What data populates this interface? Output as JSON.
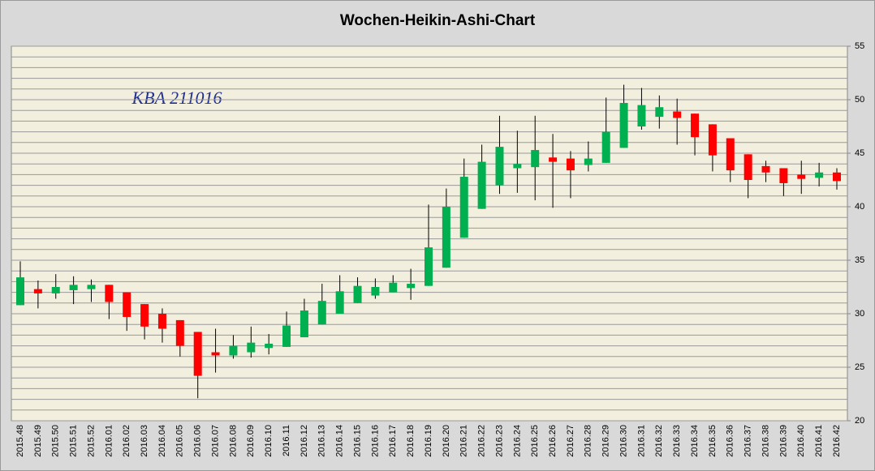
{
  "chart_data": {
    "type": "candlestick",
    "title": "Wochen-Heikin-Ashi-Chart",
    "annotation": "KBA 211016",
    "categories": [
      "2015.48",
      "2015.49",
      "2015.50",
      "2015.51",
      "2015.52",
      "2016.01",
      "2016.02",
      "2016.03",
      "2016.04",
      "2016.05",
      "2016.06",
      "2016.07",
      "2016.08",
      "2016.09",
      "2016.10",
      "2016.11",
      "2016.12",
      "2016.13",
      "2016.14",
      "2016.15",
      "2016.16",
      "2016.17",
      "2016.18",
      "2016.19",
      "2016.20",
      "2016.21",
      "2016.22",
      "2016.23",
      "2016.24",
      "2016.25",
      "2016.26",
      "2016.27",
      "2016.28",
      "2016.29",
      "2016.30",
      "2016.31",
      "2016.32",
      "2016.33",
      "2016.34",
      "2016.35",
      "2016.36",
      "2016.37",
      "2016.38",
      "2016.39",
      "2016.40",
      "2016.41",
      "2016.42"
    ],
    "open": [
      30.8,
      32.3,
      31.9,
      32.2,
      32.3,
      32.7,
      32.0,
      30.9,
      30.0,
      29.4,
      28.3,
      26.4,
      26.1,
      26.4,
      26.8,
      26.9,
      27.8,
      29.0,
      30.0,
      31.0,
      31.7,
      32.0,
      32.4,
      32.6,
      34.3,
      37.1,
      39.8,
      42.0,
      43.6,
      43.7,
      44.6,
      44.5,
      43.9,
      44.1,
      45.5,
      47.5,
      48.4,
      48.9,
      48.7,
      47.7,
      46.4,
      44.9,
      43.8,
      43.6,
      43.0,
      42.7,
      43.2
    ],
    "high": [
      34.9,
      33.1,
      33.7,
      33.5,
      33.2,
      32.7,
      32.0,
      30.9,
      30.5,
      29.4,
      28.3,
      28.6,
      28.0,
      28.8,
      28.1,
      30.2,
      31.4,
      32.8,
      33.6,
      33.4,
      33.3,
      33.6,
      34.2,
      40.2,
      41.7,
      44.5,
      45.8,
      48.5,
      47.1,
      48.5,
      46.8,
      45.2,
      46.1,
      50.2,
      51.4,
      51.1,
      50.4,
      50.1,
      48.7,
      47.7,
      46.4,
      44.9,
      44.3,
      43.6,
      44.3,
      44.1,
      43.6
    ],
    "low": [
      30.8,
      30.5,
      31.4,
      30.9,
      31.1,
      29.5,
      28.4,
      27.6,
      27.3,
      26.0,
      22.1,
      24.5,
      25.8,
      25.9,
      26.2,
      26.9,
      27.8,
      29.0,
      30.0,
      31.0,
      31.4,
      32.0,
      31.3,
      32.6,
      34.3,
      37.1,
      39.8,
      41.2,
      41.3,
      40.6,
      39.9,
      40.8,
      43.3,
      44.1,
      45.5,
      47.2,
      47.3,
      45.8,
      44.8,
      43.3,
      42.3,
      40.8,
      42.3,
      41.0,
      41.2,
      41.9,
      41.6
    ],
    "close": [
      33.4,
      31.9,
      32.5,
      32.7,
      32.7,
      31.1,
      29.7,
      28.8,
      28.6,
      27.0,
      24.2,
      26.1,
      27.0,
      27.3,
      27.2,
      28.9,
      30.3,
      31.2,
      32.1,
      32.6,
      32.5,
      32.9,
      32.8,
      36.2,
      40.0,
      42.8,
      44.2,
      45.6,
      44.0,
      45.3,
      44.2,
      43.4,
      44.5,
      47.0,
      49.7,
      49.5,
      49.3,
      48.3,
      46.5,
      44.8,
      43.4,
      42.5,
      43.2,
      42.2,
      42.6,
      43.2,
      42.4
    ],
    "up_color": "#00b050",
    "down_color": "#ff0000",
    "wick_color": "#000000",
    "ylim": [
      20,
      55
    ],
    "yticks": [
      20,
      25,
      30,
      35,
      40,
      45,
      50,
      55
    ],
    "grid_lines": [
      20,
      21,
      22,
      23,
      24,
      25,
      26,
      27,
      28,
      29,
      30,
      31,
      32,
      33,
      34,
      35,
      36,
      37,
      38,
      39,
      40,
      41,
      42,
      43,
      44,
      45,
      46,
      47,
      48,
      49,
      50,
      51,
      52,
      53,
      54,
      55
    ],
    "grid": true
  }
}
